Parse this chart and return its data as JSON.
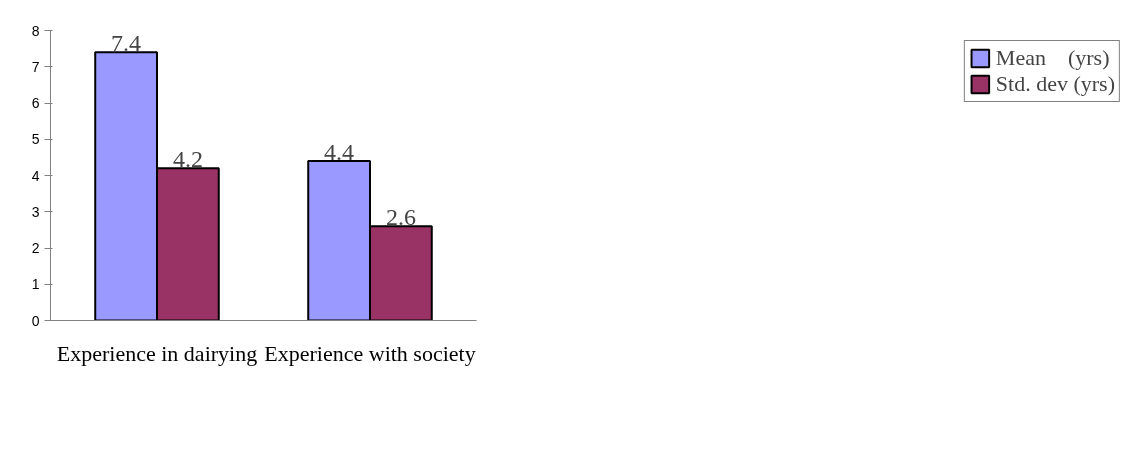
{
  "chart_data": {
    "type": "bar",
    "categories": [
      "Experience in dairying",
      "Experience with society"
    ],
    "series": [
      {
        "name": "Mean    (yrs)",
        "color": "#9999ff",
        "values": [
          7.4,
          4.4
        ]
      },
      {
        "name": "Std. dev (yrs)",
        "color": "#993366",
        "values": [
          4.2,
          2.6
        ]
      }
    ],
    "ylim": [
      0,
      8
    ],
    "yticks": [
      0,
      1,
      2,
      3,
      4,
      5,
      6,
      7,
      8
    ],
    "grid": false,
    "legend": "right",
    "data_labels": true
  }
}
